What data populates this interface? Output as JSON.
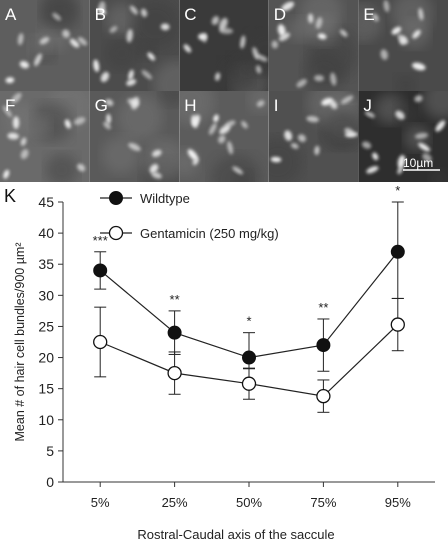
{
  "panels": {
    "labels": [
      "A",
      "B",
      "C",
      "D",
      "E",
      "F",
      "G",
      "H",
      "I",
      "J"
    ],
    "scale_bar_label": "10µm"
  },
  "chart_data": {
    "type": "line",
    "panel_label": "K",
    "categories": [
      "5%",
      "25%",
      "50%",
      "75%",
      "95%"
    ],
    "xlabel": "Rostral-Caudal axis of the saccule",
    "ylabel": "Mean # of hair cell bundles/900 µm²",
    "ylim": [
      0,
      45
    ],
    "yticks": [
      "0",
      "5",
      "10",
      "15",
      "20",
      "25",
      "30",
      "35",
      "40",
      "45"
    ],
    "grid": false,
    "legend_position": "top-left",
    "series": [
      {
        "name": "Wildtype",
        "marker": "filled-circle",
        "values": [
          34,
          24,
          20,
          22,
          37
        ],
        "err_low": [
          3,
          3.5,
          1.8,
          4.2,
          7.5
        ],
        "err_high": [
          3,
          3.5,
          4,
          4.2,
          8
        ]
      },
      {
        "name": "Gentamicin (250 mg/kg)",
        "marker": "open-circle",
        "values": [
          22.5,
          17.5,
          15.8,
          13.8,
          25.3
        ],
        "err_low": [
          5.6,
          3.4,
          2.5,
          2.6,
          4.2
        ],
        "err_high": [
          5.6,
          3.4,
          2.5,
          2.6,
          4.2
        ]
      }
    ],
    "significance": [
      "***",
      "**",
      "*",
      "**",
      "*"
    ]
  }
}
